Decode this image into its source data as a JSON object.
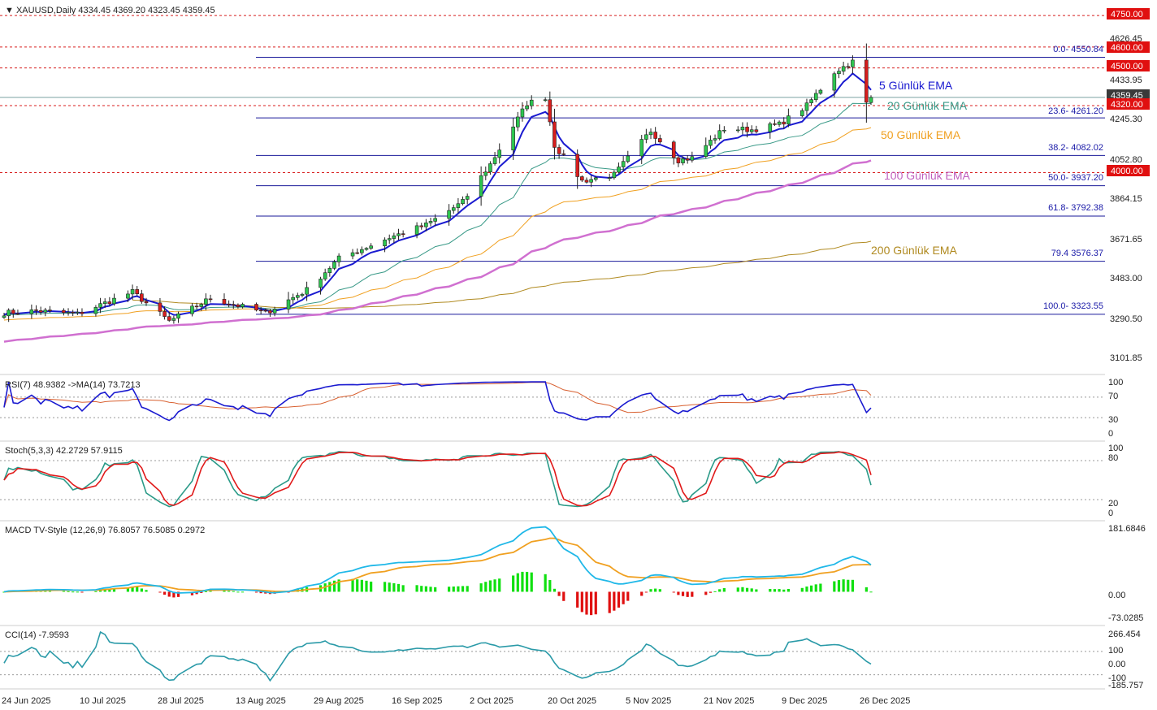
{
  "header": {
    "symbol_line": "XAUUSD,Daily  4334.45 4369.20 4323.45 4359.45"
  },
  "colors": {
    "up": "#2dc650",
    "down": "#d81e1e",
    "ema5": "#1a1ad0",
    "ema20": "#3a9a88",
    "ema50": "#f0a020",
    "ema100": "#d070d0",
    "ema200": "#b08a20",
    "fib": "#1a1a9a",
    "level": "#d81e1e",
    "rsi": "#1a1ad0",
    "rsi_ma": "#d86030",
    "stoch_k": "#2a9a88",
    "stoch_d": "#e01a1a",
    "macd": "#20b8e8",
    "signal": "#f0a020",
    "cci": "#2a9aa8"
  },
  "price_axis": [
    "4626.45",
    "4433.95",
    "4245.30",
    "4052.80",
    "3864.15",
    "3671.65",
    "3483.00",
    "3290.50",
    "3101.85"
  ],
  "current_price_tag": "4359.45",
  "level_tags": [
    "4750.00",
    "4600.00",
    "4500.00",
    "4320.00",
    "4000.00"
  ],
  "fib_labels": [
    "0.0- 4550.84",
    "23.6- 4261.20",
    "38.2- 4082.02",
    "50.0- 3937.20",
    "61.8- 3792.38",
    "79.4 3576.37",
    "100.0- 3323.55"
  ],
  "ema_labels": [
    "5 Günlük EMA",
    "20 Günlük EMA",
    "50 Günlük EMA",
    "100 Günlük EMA",
    "200 Günlük EMA"
  ],
  "rsi_panel": {
    "title": "RSI(7) 48.9382   ->MA(14) 73.7213",
    "scale": [
      "100",
      "70",
      "30",
      "0"
    ]
  },
  "stoch_panel": {
    "title": "Stoch(5,3,3) 42.2729 57.9115",
    "scale": [
      "100",
      "80",
      "20",
      "0"
    ]
  },
  "macd_panel": {
    "title": "MACD TV-Style (12,26,9) 76.8057 76.5085 0.2972",
    "scale": [
      "181.6846",
      "0.00",
      "-73.0285"
    ]
  },
  "cci_panel": {
    "title": "CCI(14) -7.9593",
    "scale": [
      "266.454",
      "100",
      "0.00",
      "-100",
      "-185.757"
    ]
  },
  "time_axis": [
    "24 Jun 2025",
    "10 Jul 2025",
    "28 Jul 2025",
    "13 Aug 2025",
    "29 Aug 2025",
    "16 Sep 2025",
    "2 Oct 2025",
    "20 Oct 2025",
    "5 Nov 2025",
    "21 Nov 2025",
    "9 Dec 2025",
    "26 Dec 2025"
  ],
  "chart_data": {
    "type": "candlestick",
    "symbol": "XAUUSD",
    "timeframe": "Daily",
    "last_bar": {
      "open": 4334.45,
      "high": 4369.2,
      "low": 4323.45,
      "close": 4359.45
    },
    "ylim": [
      3101.85,
      4750
    ],
    "x_start": "2025-06-24",
    "x_end": "2025-12-30",
    "close_anchors": [
      [
        "2025-06-24",
        3330
      ],
      [
        "2025-07-01",
        3340
      ],
      [
        "2025-07-10",
        3325
      ],
      [
        "2025-07-22",
        3430
      ],
      [
        "2025-07-30",
        3290
      ],
      [
        "2025-08-08",
        3400
      ],
      [
        "2025-08-20",
        3330
      ],
      [
        "2025-08-29",
        3440
      ],
      [
        "2025-09-05",
        3590
      ],
      [
        "2025-09-16",
        3690
      ],
      [
        "2025-09-24",
        3750
      ],
      [
        "2025-10-02",
        3860
      ],
      [
        "2025-10-08",
        4040
      ],
      [
        "2025-10-16",
        4330
      ],
      [
        "2025-10-20",
        4360
      ],
      [
        "2025-10-22",
        4130
      ],
      [
        "2025-10-28",
        3960
      ],
      [
        "2025-11-04",
        3990
      ],
      [
        "2025-11-12",
        4200
      ],
      [
        "2025-11-18",
        4060
      ],
      [
        "2025-11-21",
        4070
      ],
      [
        "2025-11-28",
        4210
      ],
      [
        "2025-12-04",
        4205
      ],
      [
        "2025-12-10",
        4230
      ],
      [
        "2025-12-16",
        4320
      ],
      [
        "2025-12-22",
        4480
      ],
      [
        "2025-12-26",
        4530
      ],
      [
        "2025-12-29",
        4330
      ],
      [
        "2025-12-30",
        4359.45
      ]
    ],
    "horizontal_levels": [
      4750,
      4600,
      4500,
      4320,
      4000
    ],
    "fibonacci": [
      {
        "ratio": "0.0",
        "price": 4550.84
      },
      {
        "ratio": "23.6",
        "price": 4261.2
      },
      {
        "ratio": "38.2",
        "price": 4082.02
      },
      {
        "ratio": "50.0",
        "price": 3937.2
      },
      {
        "ratio": "61.8",
        "price": 3792.38
      },
      {
        "ratio": "79.4",
        "price": 3576.37
      },
      {
        "ratio": "100.0",
        "price": 3323.55
      }
    ],
    "ema_end_values": {
      "5": 4395,
      "20": 4330,
      "50": 4215,
      "100": 4058,
      "200": 3672
    },
    "indicators": {
      "rsi7": 48.9382,
      "rsi_ma14": 73.7213,
      "stoch_k": 42.2729,
      "stoch_d": 57.9115,
      "macd": 76.8057,
      "macd_signal": 76.5085,
      "macd_hist": 0.2972,
      "cci14": -7.9593,
      "rsi_ylim": [
        0,
        100
      ],
      "stoch_ylim": [
        0,
        100
      ],
      "macd_ylim": [
        -73.0285,
        181.6846
      ],
      "cci_ylim": [
        -185.757,
        266.454
      ]
    }
  }
}
